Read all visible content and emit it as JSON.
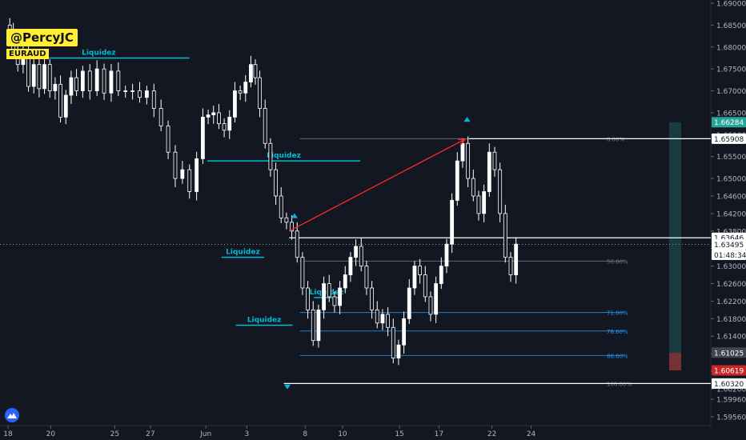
{
  "header": {
    "handle": "@PercyJC",
    "symbol": "EURAUD"
  },
  "chart_data": {
    "type": "candlestick",
    "title": "",
    "symbol": "EURAUD",
    "y_axis": {
      "position": "right",
      "ticks": [
        "1.69000",
        "1.68500",
        "1.68000",
        "1.67500",
        "1.67000",
        "1.66500",
        "1.66000",
        "1.65500",
        "1.65000",
        "1.64600",
        "1.64200",
        "1.63800",
        "1.63400",
        "1.63000",
        "1.62600",
        "1.62200",
        "1.61800",
        "1.61400",
        "1.61000",
        "1.60600",
        "1.60200",
        "1.59960",
        "1.59560"
      ]
    },
    "x_axis": {
      "ticks": [
        {
          "label": "18",
          "v": 0
        },
        {
          "label": "20",
          "v": 0.12
        },
        {
          "label": "25",
          "v": 0.3
        },
        {
          "label": "27",
          "v": 0.4
        },
        {
          "label": "Jun",
          "v": 0.556
        },
        {
          "label": "3",
          "v": 0.671
        },
        {
          "label": "8",
          "v": 0.835
        },
        {
          "label": "10",
          "v": 0.94
        },
        {
          "label": "15",
          "v": 1.1
        },
        {
          "label": "17",
          "v": 1.211
        },
        {
          "label": "22",
          "v": 1.36
        },
        {
          "label": "24",
          "v": 1.47
        }
      ]
    },
    "price_tags": [
      {
        "value": "1.66284",
        "color": "#26a69a",
        "text_color": "#ffffff"
      },
      {
        "value": "1.65908",
        "color": "#ffffff",
        "text_color": "#131722"
      },
      {
        "value": "1.63646",
        "color": "#ffffff",
        "text_color": "#131722"
      },
      {
        "value": "1.63495",
        "color": "#ffffff",
        "text_color": "#131722"
      },
      {
        "value": "01:48:34",
        "color": "#ffffff",
        "text_color": "#131722"
      },
      {
        "value": "1.61025",
        "color": "#434651",
        "text_color": "#ffffff"
      },
      {
        "value": "1.60619",
        "color": "#c62828",
        "text_color": "#ffffff"
      },
      {
        "value": "1.60320",
        "color": "#ffffff",
        "text_color": "#131722"
      }
    ],
    "liquidity_lines": [
      {
        "label": "Liquidez",
        "level": 1.6775,
        "from": 0,
        "to": 0.51
      },
      {
        "label": "Liquidez",
        "level": 1.654,
        "from": 0.56,
        "to": 0.99
      },
      {
        "label": "Liquidez",
        "level": 1.632,
        "from": 0.6,
        "to": 0.72
      },
      {
        "label": "Liquidez",
        "level": 1.6165,
        "from": 0.64,
        "to": 0.8
      },
      {
        "label": "Liquidez",
        "level": 1.6228,
        "from": 0.86,
        "to": 0.93
      }
    ],
    "fibonacci": [
      {
        "label": "0.00%",
        "level": 1.65908
      },
      {
        "label": "50.00%",
        "level": 1.63114
      },
      {
        "label": "71.00%",
        "level": 1.6194
      },
      {
        "label": "78.60%",
        "level": 1.61518
      },
      {
        "label": "88.60%",
        "level": 1.6096
      },
      {
        "label": "100.00%",
        "level": 1.6032
      }
    ],
    "horizontal_levels": [
      1.65908,
      1.63646,
      1.6032
    ],
    "current_price": 1.63495,
    "range_box": {
      "top": 1.66284,
      "mid": 1.61025,
      "bottom": 1.60619
    },
    "colors": {
      "bull": "#ffffff",
      "bear": "#ffffff",
      "liquidity": "#00bcd4",
      "arrow": "#ff2a2a",
      "tp_zone": "#26a69a",
      "sl_zone": "#ef5350",
      "fib_line": "#2196f3"
    },
    "price_series": [
      [
        0,
        1.685
      ],
      [
        0.01,
        1.6835
      ],
      [
        0.02,
        1.679
      ],
      [
        0.035,
        1.676
      ],
      [
        0.05,
        1.679
      ],
      [
        0.065,
        1.671
      ],
      [
        0.08,
        1.676
      ],
      [
        0.095,
        1.6705
      ],
      [
        0.11,
        1.676
      ],
      [
        0.125,
        1.67
      ],
      [
        0.14,
        1.6715
      ],
      [
        0.155,
        1.664
      ],
      [
        0.17,
        1.669
      ],
      [
        0.185,
        1.673
      ],
      [
        0.2,
        1.67
      ],
      [
        0.22,
        1.6745
      ],
      [
        0.24,
        1.67
      ],
      [
        0.26,
        1.675
      ],
      [
        0.28,
        1.6695
      ],
      [
        0.3,
        1.6745
      ],
      [
        0.32,
        1.67
      ],
      [
        0.34,
        1.67
      ],
      [
        0.36,
        1.67
      ],
      [
        0.38,
        1.6685
      ],
      [
        0.4,
        1.67
      ],
      [
        0.42,
        1.666
      ],
      [
        0.44,
        1.662
      ],
      [
        0.46,
        1.656
      ],
      [
        0.48,
        1.65
      ],
      [
        0.5,
        1.652
      ],
      [
        0.52,
        1.647
      ],
      [
        0.54,
        1.6545
      ],
      [
        0.555,
        1.664
      ],
      [
        0.57,
        1.6645
      ],
      [
        0.585,
        1.665
      ],
      [
        0.6,
        1.6625
      ],
      [
        0.615,
        1.661
      ],
      [
        0.63,
        1.664
      ],
      [
        0.645,
        1.67
      ],
      [
        0.66,
        1.6695
      ],
      [
        0.675,
        1.672
      ],
      [
        0.69,
        1.676
      ],
      [
        0.7,
        1.673
      ],
      [
        0.715,
        1.666
      ],
      [
        0.73,
        1.658
      ],
      [
        0.745,
        1.652
      ],
      [
        0.76,
        1.646
      ],
      [
        0.775,
        1.641
      ],
      [
        0.79,
        1.64
      ],
      [
        0.805,
        1.638
      ],
      [
        0.82,
        1.632
      ],
      [
        0.835,
        1.625
      ],
      [
        0.85,
        1.62
      ],
      [
        0.865,
        1.613
      ],
      [
        0.88,
        1.62
      ],
      [
        0.895,
        1.626
      ],
      [
        0.91,
        1.623
      ],
      [
        0.925,
        1.621
      ],
      [
        0.94,
        1.625
      ],
      [
        0.955,
        1.628
      ],
      [
        0.97,
        1.632
      ],
      [
        0.985,
        1.6345
      ],
      [
        1.0,
        1.63
      ],
      [
        1.015,
        1.625
      ],
      [
        1.03,
        1.62
      ],
      [
        1.045,
        1.617
      ],
      [
        1.06,
        1.619
      ],
      [
        1.075,
        1.616
      ],
      [
        1.09,
        1.609
      ],
      [
        1.105,
        1.612
      ],
      [
        1.12,
        1.618
      ],
      [
        1.135,
        1.625
      ],
      [
        1.15,
        1.63
      ],
      [
        1.165,
        1.628
      ],
      [
        1.18,
        1.623
      ],
      [
        1.195,
        1.619
      ],
      [
        1.21,
        1.626
      ],
      [
        1.225,
        1.63
      ],
      [
        1.24,
        1.635
      ],
      [
        1.255,
        1.645
      ],
      [
        1.27,
        1.654
      ],
      [
        1.285,
        1.658
      ],
      [
        1.3,
        1.65
      ],
      [
        1.315,
        1.646
      ],
      [
        1.33,
        1.642
      ],
      [
        1.345,
        1.647
      ],
      [
        1.36,
        1.656
      ],
      [
        1.375,
        1.652
      ],
      [
        1.39,
        1.642
      ],
      [
        1.405,
        1.632
      ],
      [
        1.42,
        1.628
      ],
      [
        1.435,
        1.635
      ]
    ]
  }
}
